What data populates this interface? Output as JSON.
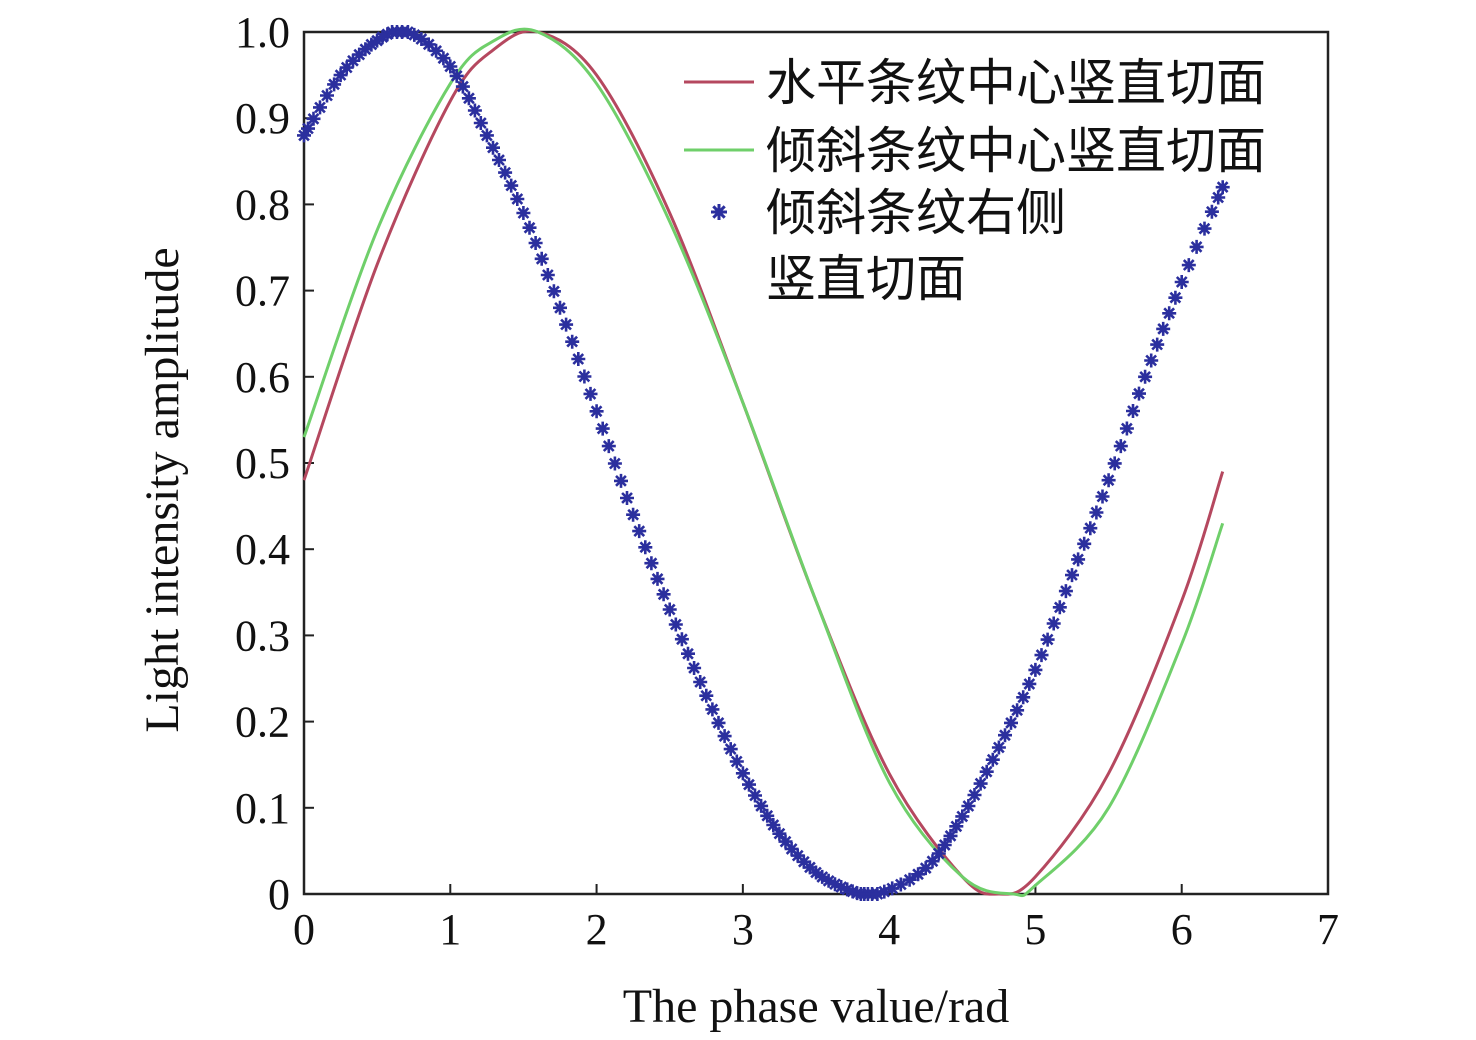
{
  "chart_data": {
    "type": "line",
    "xlabel": "The phase value/rad",
    "ylabel": "Light intensity amplitude",
    "xlim": [
      0,
      7
    ],
    "ylim": [
      0,
      1.0
    ],
    "x_ticks": [
      "0",
      "1",
      "2",
      "3",
      "4",
      "5",
      "6",
      "7"
    ],
    "y_ticks": [
      "0",
      "0.1",
      "0.2",
      "0.3",
      "0.4",
      "0.5",
      "0.6",
      "0.7",
      "0.8",
      "0.9",
      "1.0"
    ],
    "legend_position": "top-right",
    "grid": false,
    "series": [
      {
        "name": "水平条纹中心竖直切面",
        "style": "line",
        "color": "#b5485f",
        "x": [
          0,
          0.5,
          1.0,
          1.3,
          1.6,
          2.0,
          2.5,
          3.0,
          3.5,
          4.0,
          4.5,
          4.75,
          5.0,
          5.5,
          6.0,
          6.28
        ],
        "y": [
          0.48,
          0.73,
          0.92,
          0.98,
          1.0,
          0.95,
          0.79,
          0.57,
          0.34,
          0.14,
          0.02,
          0.0,
          0.02,
          0.14,
          0.34,
          0.49
        ]
      },
      {
        "name": "倾斜条纹中心竖直切面",
        "style": "line",
        "color": "#6fcf6a",
        "x": [
          0,
          0.5,
          1.0,
          1.3,
          1.6,
          2.0,
          2.5,
          3.0,
          3.5,
          4.0,
          4.5,
          4.85,
          5.0,
          5.5,
          6.0,
          6.28
        ],
        "y": [
          0.53,
          0.77,
          0.94,
          0.99,
          1.0,
          0.94,
          0.78,
          0.57,
          0.34,
          0.13,
          0.02,
          0.0,
          0.01,
          0.1,
          0.29,
          0.43
        ]
      },
      {
        "name": "倾斜条纹右侧竖直切面",
        "style": "marker",
        "color": "#2b2f9e",
        "x": [
          0,
          0.25,
          0.5,
          0.71,
          1.0,
          1.25,
          1.5,
          1.75,
          2.0,
          2.25,
          2.5,
          2.75,
          3.0,
          3.25,
          3.5,
          3.75,
          3.92,
          4.25,
          4.5,
          4.75,
          5.0,
          5.25,
          5.5,
          5.75,
          6.0,
          6.28
        ],
        "y": [
          0.88,
          0.95,
          0.99,
          1.0,
          0.96,
          0.88,
          0.79,
          0.68,
          0.56,
          0.44,
          0.33,
          0.23,
          0.14,
          0.07,
          0.025,
          0.003,
          0.0,
          0.03,
          0.09,
          0.17,
          0.26,
          0.37,
          0.48,
          0.6,
          0.71,
          0.82
        ]
      }
    ],
    "legend": [
      {
        "lines": [
          "水平条纹中心竖直切面"
        ]
      },
      {
        "lines": [
          "倾斜条纹中心竖直切面"
        ]
      },
      {
        "lines": [
          "倾斜条纹右侧",
          "竖直切面"
        ]
      }
    ]
  }
}
